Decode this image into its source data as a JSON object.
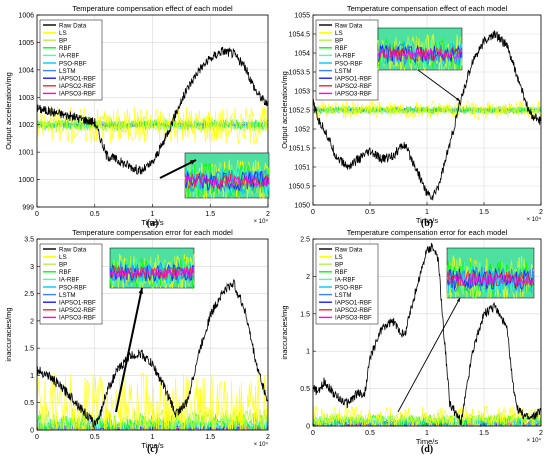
{
  "figure": {
    "background": "#ffffff",
    "series_colors": {
      "Raw Data": "#000000",
      "LS": "#ffff00",
      "BP": "#b8f04a",
      "RBF": "#00ff00",
      "IA-RBF": "#40ffb0",
      "PSO-RBF": "#00c8ff",
      "LSTM": "#3b82ff",
      "IAPSO1-RBF": "#1a1aff",
      "IAPSO2-RBF": "#ff2020",
      "IAPSO3-RBF": "#ff00ff"
    }
  },
  "chart_data": [
    {
      "id": "a",
      "type": "line",
      "panel_label": "(a)",
      "title": "Temperature compensation effect of each model",
      "xlabel": "Time/s",
      "x_exponent": "× 10⁴",
      "ylabel": "Output acceleration/mg",
      "xlim": [
        0,
        2
      ],
      "ylim": [
        999,
        1006
      ],
      "x_ticks": [
        "0",
        "0.5",
        "1",
        "1.5",
        "2"
      ],
      "y_ticks": [
        "999",
        "1000",
        "1001",
        "1002",
        "1003",
        "1004",
        "1005",
        "1006"
      ],
      "grid": true,
      "legend": [
        "Raw Data",
        "LS",
        "BP",
        "RBF",
        "IA-RBF",
        "PSO-RBF",
        "LSTM",
        "IAPSO1-RBF",
        "IAPSO2-RBF",
        "IAPSO3-RBF"
      ],
      "legend_position": "top-left",
      "series": [
        {
          "name": "Raw Data",
          "x": [
            0,
            0.1,
            0.2,
            0.3,
            0.4,
            0.5,
            0.55,
            0.6,
            0.7,
            0.8,
            0.9,
            1.0,
            1.1,
            1.2,
            1.3,
            1.4,
            1.5,
            1.6,
            1.7,
            1.8,
            1.9,
            2.0
          ],
          "values": [
            1002.6,
            1002.5,
            1002.4,
            1002.3,
            1002.2,
            1002.1,
            1001.5,
            1000.9,
            1000.7,
            1000.5,
            1000.3,
            1000.6,
            1001.4,
            1002.4,
            1003.3,
            1004.0,
            1004.4,
            1004.7,
            1004.6,
            1004.1,
            1003.2,
            1002.7
          ]
        },
        {
          "name": "LS",
          "values": [
            1002.0,
            1002.0
          ],
          "spread": 0.7
        },
        {
          "name": "BP",
          "values": [
            1002.0,
            1002.0
          ],
          "spread": 0.3
        },
        {
          "name": "RBF",
          "values": [
            1002.0,
            1002.0
          ],
          "spread": 0.2
        },
        {
          "name": "IA-RBF",
          "values": [
            1002.0,
            1002.0
          ],
          "spread": 0.15
        },
        {
          "name": "PSO-RBF",
          "values": [
            1002.0,
            1002.0
          ],
          "spread": 0.12
        },
        {
          "name": "LSTM",
          "values": [
            1002.0,
            1002.0
          ],
          "spread": 0.1
        },
        {
          "name": "IAPSO1-RBF",
          "values": [
            1002.0,
            1002.0
          ],
          "spread": 0.06
        },
        {
          "name": "IAPSO2-RBF",
          "values": [
            1002.0,
            1002.0
          ],
          "spread": 0.04
        },
        {
          "name": "IAPSO3-RBF",
          "values": [
            1002.0,
            1002.0
          ],
          "spread": 0.02
        }
      ],
      "inset": {
        "position": "bottom-right",
        "arrow": true
      }
    },
    {
      "id": "b",
      "type": "line",
      "panel_label": "(b)",
      "title": "Temperature compensation effect of each model",
      "xlabel": "Time/s",
      "x_exponent": "× 10⁴",
      "ylabel": "Output acceleration/mg",
      "xlim": [
        0,
        2
      ],
      "ylim": [
        1050,
        1055
      ],
      "x_ticks": [
        "0",
        "0.5",
        "1",
        "1.5",
        "2"
      ],
      "y_ticks": [
        "1050",
        "1050.5",
        "1051",
        "1051.5",
        "1052",
        "1052.5",
        "1053",
        "1053.5",
        "1054",
        "1054.5",
        "1055"
      ],
      "grid": true,
      "legend": [
        "Raw Data",
        "LS",
        "BP",
        "RBF",
        "IA-RBF",
        "PSO-RBF",
        "LSTM",
        "IAPSO1-RBF",
        "IAPSO2-RBF",
        "IAPSO3-RBF"
      ],
      "legend_position": "top-left",
      "series": [
        {
          "name": "Raw Data",
          "x": [
            0,
            0.05,
            0.1,
            0.2,
            0.3,
            0.35,
            0.4,
            0.5,
            0.6,
            0.7,
            0.8,
            0.9,
            1.0,
            1.05,
            1.1,
            1.2,
            1.3,
            1.4,
            1.5,
            1.6,
            1.7,
            1.8,
            1.9,
            2.0
          ],
          "values": [
            1052.7,
            1052.2,
            1052.0,
            1051.3,
            1051.0,
            1051.1,
            1051.2,
            1051.4,
            1051.2,
            1051.3,
            1051.6,
            1051.0,
            1050.3,
            1050.2,
            1050.5,
            1051.6,
            1052.8,
            1053.8,
            1054.3,
            1054.5,
            1054.2,
            1053.3,
            1052.4,
            1052.2
          ]
        },
        {
          "name": "LS",
          "values": [
            1052.5,
            1052.5
          ],
          "spread": 0.25
        },
        {
          "name": "BP",
          "values": [
            1052.5,
            1052.5
          ],
          "spread": 0.12
        },
        {
          "name": "RBF",
          "values": [
            1052.5,
            1052.5
          ],
          "spread": 0.1
        },
        {
          "name": "IA-RBF",
          "values": [
            1052.5,
            1052.5
          ],
          "spread": 0.08
        },
        {
          "name": "PSO-RBF",
          "values": [
            1052.5,
            1052.5
          ],
          "spread": 0.07
        },
        {
          "name": "LSTM",
          "values": [
            1052.5,
            1052.5
          ],
          "spread": 0.06
        },
        {
          "name": "IAPSO1-RBF",
          "values": [
            1052.5,
            1052.5
          ],
          "spread": 0.04
        },
        {
          "name": "IAPSO2-RBF",
          "values": [
            1052.5,
            1052.5
          ],
          "spread": 0.03
        },
        {
          "name": "IAPSO3-RBF",
          "values": [
            1052.5,
            1052.5
          ],
          "spread": 0.02
        }
      ],
      "inset": {
        "position": "top-center",
        "arrow": true
      }
    },
    {
      "id": "c",
      "type": "line",
      "panel_label": "(c)",
      "title": "Temperature compensation error for each model",
      "xlabel": "Time/s",
      "x_exponent": "× 10⁴",
      "ylabel": "inaccuracies/mg",
      "xlim": [
        0,
        2
      ],
      "ylim": [
        0,
        3.5
      ],
      "x_ticks": [
        "0",
        "0.5",
        "1",
        "1.5",
        "2"
      ],
      "y_ticks": [
        "0",
        "0.5",
        "1",
        "1.5",
        "2",
        "2.5",
        "3",
        "3.5"
      ],
      "grid": true,
      "legend": [
        "Raw Data",
        "LS",
        "BP",
        "RBF",
        "IA-RBF",
        "PSO-RBF",
        "LSTM",
        "IAPSO1-RBF",
        "IAPSO2-RBF",
        "IAPSO3-RBF"
      ],
      "legend_position": "top-left",
      "series": [
        {
          "name": "Raw Data",
          "x": [
            0,
            0.05,
            0.1,
            0.2,
            0.3,
            0.4,
            0.5,
            0.55,
            0.6,
            0.7,
            0.8,
            0.9,
            0.95,
            1.0,
            1.1,
            1.2,
            1.3,
            1.4,
            1.5,
            1.6,
            1.7,
            1.8,
            1.9,
            2.0
          ],
          "values": [
            1.1,
            1.05,
            1.0,
            0.8,
            0.6,
            0.35,
            0.1,
            0.3,
            0.7,
            1.1,
            1.35,
            1.4,
            1.3,
            1.2,
            0.8,
            0.3,
            0.5,
            1.4,
            2.1,
            2.5,
            2.7,
            2.2,
            1.2,
            0.5
          ]
        },
        {
          "name": "LS",
          "values": [
            0.35,
            0.35
          ],
          "spread": 0.7
        },
        {
          "name": "BP",
          "values": [
            0.15,
            0.15
          ],
          "spread": 0.25
        },
        {
          "name": "RBF",
          "values": [
            0.12,
            0.12
          ],
          "spread": 0.18
        },
        {
          "name": "IA-RBF",
          "values": [
            0.1,
            0.1
          ],
          "spread": 0.12
        },
        {
          "name": "PSO-RBF",
          "values": [
            0.08,
            0.08
          ],
          "spread": 0.1
        },
        {
          "name": "LSTM",
          "values": [
            0.06,
            0.06
          ],
          "spread": 0.08
        },
        {
          "name": "IAPSO1-RBF",
          "values": [
            0.04,
            0.04
          ],
          "spread": 0.05
        },
        {
          "name": "IAPSO2-RBF",
          "values": [
            0.03,
            0.03
          ],
          "spread": 0.03
        },
        {
          "name": "IAPSO3-RBF",
          "values": [
            0.02,
            0.02
          ],
          "spread": 0.02
        }
      ],
      "inset": {
        "position": "top-center",
        "arrow": true
      }
    },
    {
      "id": "d",
      "type": "line",
      "panel_label": "(d)",
      "title": "Temperature compensation error for each model",
      "xlabel": "Time/s",
      "x_exponent": "× 10⁴",
      "ylabel": "inaccuracies/mg",
      "xlim": [
        0,
        2
      ],
      "ylim": [
        0,
        2.5
      ],
      "x_ticks": [
        "0",
        "0.5",
        "1",
        "1.5",
        "2"
      ],
      "y_ticks": [
        "0",
        "0.5",
        "1",
        "1.5",
        "2",
        "2.5"
      ],
      "grid": true,
      "legend": [
        "Raw Data",
        "LS",
        "BP",
        "RBF",
        "IA-RBF",
        "PSO-RBF",
        "LSTM",
        "IAPSO1-RBF",
        "IAPSO2-RBF",
        "IAPSO3-RBF"
      ],
      "legend_position": "top-left",
      "series": [
        {
          "name": "Raw Data",
          "x": [
            0,
            0.05,
            0.1,
            0.2,
            0.3,
            0.4,
            0.45,
            0.5,
            0.6,
            0.7,
            0.8,
            0.9,
            1.0,
            1.05,
            1.1,
            1.15,
            1.2,
            1.3,
            1.4,
            1.5,
            1.6,
            1.7,
            1.75,
            1.8,
            1.9,
            2.0
          ],
          "values": [
            0.5,
            0.45,
            0.6,
            0.4,
            0.3,
            0.45,
            0.4,
            0.9,
            1.3,
            1.4,
            1.2,
            1.8,
            2.35,
            2.4,
            2.2,
            1.2,
            0.3,
            0.05,
            1.0,
            1.5,
            1.6,
            1.3,
            0.6,
            0.2,
            0.1,
            0.2
          ]
        },
        {
          "name": "LS",
          "values": [
            0.12,
            0.12
          ],
          "spread": 0.15
        },
        {
          "name": "BP",
          "values": [
            0.08,
            0.08
          ],
          "spread": 0.1
        },
        {
          "name": "RBF",
          "values": [
            0.07,
            0.07
          ],
          "spread": 0.08
        },
        {
          "name": "IA-RBF",
          "values": [
            0.06,
            0.06
          ],
          "spread": 0.07
        },
        {
          "name": "PSO-RBF",
          "values": [
            0.05,
            0.05
          ],
          "spread": 0.06
        },
        {
          "name": "LSTM",
          "values": [
            0.04,
            0.04
          ],
          "spread": 0.05
        },
        {
          "name": "IAPSO1-RBF",
          "values": [
            0.03,
            0.03
          ],
          "spread": 0.04
        },
        {
          "name": "IAPSO2-RBF",
          "values": [
            0.02,
            0.02
          ],
          "spread": 0.03
        },
        {
          "name": "IAPSO3-RBF",
          "values": [
            0.015,
            0.015
          ],
          "spread": 0.02
        }
      ],
      "inset": {
        "position": "top-right",
        "arrow": true
      }
    }
  ]
}
